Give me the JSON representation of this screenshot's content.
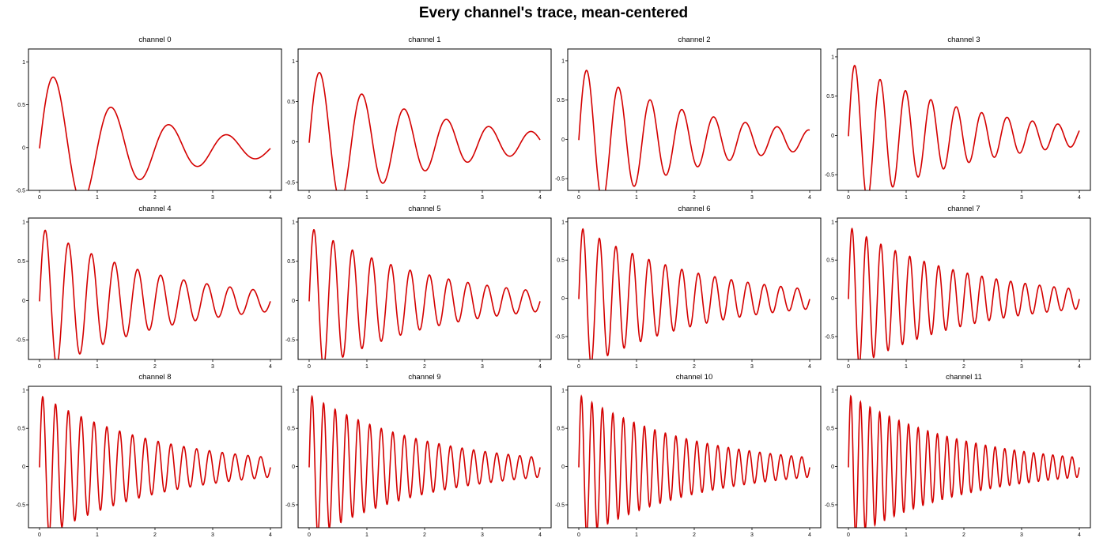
{
  "figure": {
    "title": "Every channel's trace, mean-centered",
    "line_color": "#d40000",
    "frame_color": "#000000"
  },
  "chart_data": [
    {
      "type": "line",
      "title": "channel 0",
      "xlim": [
        0,
        4
      ],
      "ylim": [
        -0.5,
        1.15
      ],
      "xticks": [
        0,
        1,
        2,
        3,
        4
      ],
      "yticks": [
        -0.5,
        0,
        0.5,
        1
      ],
      "ytick_labels": [
        "-0.5",
        "0",
        "0.5",
        "1"
      ],
      "grid": false,
      "signal": {
        "frequency_hz": 1.0,
        "decay_rate": 0.55
      },
      "series": [
        {
          "x": [
            0,
            0.25,
            0.75,
            1.25,
            1.75,
            2.25,
            2.75,
            3.25,
            3.75,
            4
          ],
          "y": [
            -0.04,
            0.82,
            -0.63,
            0.43,
            -0.39,
            0.22,
            -0.24,
            0.1,
            -0.15,
            -0.05
          ]
        }
      ]
    },
    {
      "type": "line",
      "title": "channel 1",
      "xlim": [
        0,
        4
      ],
      "ylim": [
        -0.6,
        1.15
      ],
      "xticks": [
        0,
        1,
        2,
        3,
        4
      ],
      "yticks": [
        -0.5,
        0,
        0.5,
        1
      ],
      "ytick_labels": [
        "-0.5",
        "0",
        "0.5",
        "1"
      ],
      "grid": false,
      "signal": {
        "frequency_hz": 1.364,
        "decay_rate": 0.5
      },
      "series": [
        {
          "x": [
            0,
            0.18,
            0.55,
            0.92,
            1.28,
            1.65,
            2.02,
            2.38,
            2.75,
            3.12,
            3.48,
            3.85,
            4
          ],
          "y": [
            -0.03,
            0.87,
            -0.63,
            0.55,
            -0.5,
            0.34,
            -0.34,
            0.22,
            -0.24,
            0.13,
            -0.16,
            0.07,
            -0.08
          ]
        }
      ]
    },
    {
      "type": "line",
      "title": "channel 2",
      "xlim": [
        0,
        4
      ],
      "ylim": [
        -0.65,
        1.15
      ],
      "xticks": [
        0,
        1,
        2,
        3,
        4
      ],
      "yticks": [
        -0.5,
        0,
        0.5,
        1
      ],
      "ytick_labels": [
        "-0.5",
        "0",
        "0.5",
        "1"
      ],
      "grid": false,
      "signal": {
        "frequency_hz": 1.818,
        "decay_rate": 0.5
      },
      "series": [
        {
          "x": [
            0,
            0.14,
            0.41,
            0.69,
            0.96,
            1.24,
            1.51,
            1.79,
            2.06,
            2.34,
            2.61,
            2.89,
            3.16,
            3.44,
            3.71,
            4
          ],
          "y": [
            -0.02,
            0.9,
            -0.68,
            0.63,
            -0.59,
            0.45,
            -0.42,
            0.31,
            -0.32,
            0.21,
            -0.23,
            0.15,
            -0.16,
            0.1,
            -0.13,
            0.06
          ]
        }
      ]
    },
    {
      "type": "line",
      "title": "channel 3",
      "xlim": [
        0,
        4
      ],
      "ylim": [
        -0.7,
        1.1
      ],
      "xticks": [
        0,
        1,
        2,
        3,
        4
      ],
      "yticks": [
        -0.5,
        0,
        0.5,
        1
      ],
      "ytick_labels": [
        "-0.5",
        "0",
        "0.5",
        "1"
      ],
      "grid": false,
      "signal": {
        "frequency_hz": 2.273,
        "decay_rate": 0.5
      },
      "series": [
        {
          "x": [
            0,
            0.11,
            0.33,
            0.55,
            0.77,
            0.99,
            1.21,
            1.43,
            1.65,
            1.87,
            2.09,
            2.31,
            2.53,
            2.75,
            2.97,
            3.19,
            3.41,
            3.63,
            3.85,
            4
          ],
          "y": [
            -0.01,
            0.9,
            -0.76,
            0.69,
            -0.62,
            0.53,
            -0.47,
            0.39,
            -0.38,
            0.29,
            -0.28,
            0.22,
            -0.23,
            0.16,
            -0.18,
            0.12,
            -0.14,
            0.1,
            -0.11,
            -0.11
          ]
        }
      ]
    },
    {
      "type": "line",
      "title": "channel 4",
      "xlim": [
        0,
        4
      ],
      "ylim": [
        -0.75,
        1.05
      ],
      "xticks": [
        0,
        1,
        2,
        3,
        4
      ],
      "yticks": [
        -0.5,
        0,
        0.5,
        1
      ],
      "ytick_labels": [
        "-0.5",
        "0",
        "0.5",
        "1"
      ],
      "grid": false,
      "signal": {
        "frequency_hz": 2.5,
        "decay_rate": 0.5
      },
      "series": [
        {
          "x": [
            0,
            0.1,
            0.5,
            0.9,
            1.3,
            1.7,
            2.1,
            2.5,
            2.9,
            3.3,
            3.7,
            4
          ],
          "y": [
            -0.02,
            0.92,
            0.73,
            0.57,
            0.45,
            0.35,
            0.28,
            0.21,
            0.17,
            0.13,
            0.1,
            0.04
          ]
        }
      ]
    },
    {
      "type": "line",
      "title": "channel 5",
      "xlim": [
        0,
        4
      ],
      "ylim": [
        -0.75,
        1.05
      ],
      "xticks": [
        0,
        1,
        2,
        3,
        4
      ],
      "yticks": [
        -0.5,
        0,
        0.5,
        1
      ],
      "ytick_labels": [
        "-0.5",
        "0",
        "0.5",
        "1"
      ],
      "grid": false,
      "signal": {
        "frequency_hz": 3.0,
        "decay_rate": 0.5
      },
      "series": [
        {
          "x": [
            0,
            0.08,
            0.42,
            0.75,
            1.08,
            1.42,
            1.75,
            2.08,
            2.42,
            2.75,
            3.08,
            3.42,
            3.75,
            4
          ],
          "y": [
            -0.01,
            0.93,
            0.76,
            0.62,
            0.5,
            0.41,
            0.33,
            0.27,
            0.22,
            0.18,
            0.15,
            0.12,
            0.1,
            -0.02
          ]
        }
      ]
    },
    {
      "type": "line",
      "title": "channel 6",
      "xlim": [
        0,
        4
      ],
      "ylim": [
        -0.8,
        1.05
      ],
      "xticks": [
        0,
        1,
        2,
        3,
        4
      ],
      "yticks": [
        -0.5,
        0,
        0.5,
        1
      ],
      "ytick_labels": [
        "-0.5",
        "0",
        "0.5",
        "1"
      ],
      "grid": false,
      "signal": {
        "frequency_hz": 3.5,
        "decay_rate": 0.5
      },
      "series": [
        {
          "x": [
            0,
            0.07,
            0.36,
            0.64,
            0.93,
            1.21,
            1.5,
            1.79,
            2.07,
            2.36,
            2.64,
            2.93,
            3.21,
            3.5,
            3.79,
            4
          ],
          "y": [
            -0.01,
            0.93,
            0.78,
            0.65,
            0.55,
            0.45,
            0.38,
            0.32,
            0.27,
            0.22,
            0.19,
            0.16,
            0.13,
            0.11,
            0.09,
            -0.06
          ]
        }
      ]
    },
    {
      "type": "line",
      "title": "channel 7",
      "xlim": [
        0,
        4
      ],
      "ylim": [
        -0.8,
        1.05
      ],
      "xticks": [
        0,
        1,
        2,
        3,
        4
      ],
      "yticks": [
        -0.5,
        0,
        0.5,
        1
      ],
      "ytick_labels": [
        "-0.5",
        "0",
        "0.5",
        "1"
      ],
      "grid": false,
      "signal": {
        "frequency_hz": 4.0,
        "decay_rate": 0.5
      },
      "series": [
        {
          "x": [
            0,
            0.06,
            0.31,
            0.56,
            0.81,
            1.06,
            1.31,
            1.56,
            1.81,
            2.06,
            2.31,
            2.56,
            2.81,
            3.06,
            3.31,
            3.56,
            3.81,
            4
          ],
          "y": [
            -0.01,
            0.94,
            0.8,
            0.68,
            0.58,
            0.49,
            0.42,
            0.36,
            0.3,
            0.26,
            0.22,
            0.19,
            0.16,
            0.14,
            0.12,
            0.1,
            0.08,
            0.06
          ]
        }
      ]
    },
    {
      "type": "line",
      "title": "channel 8",
      "xlim": [
        0,
        4
      ],
      "ylim": [
        -0.8,
        1.05
      ],
      "xticks": [
        0,
        1,
        2,
        3,
        4
      ],
      "yticks": [
        -0.5,
        0,
        0.5,
        1
      ],
      "ytick_labels": [
        "-0.5",
        "0",
        "0.5",
        "1"
      ],
      "grid": false,
      "signal": {
        "frequency_hz": 4.5,
        "decay_rate": 0.5
      },
      "series": [
        {
          "x": [
            0,
            0.06,
            0.28,
            0.5,
            0.72,
            0.94,
            1.17,
            1.39,
            1.61,
            1.83,
            2.06,
            2.28,
            2.5,
            2.72,
            2.94,
            3.17,
            3.39,
            3.61,
            3.83,
            4
          ],
          "y": [
            -0.01,
            0.94,
            0.82,
            0.71,
            0.62,
            0.53,
            0.46,
            0.4,
            0.35,
            0.3,
            0.26,
            0.23,
            0.2,
            0.17,
            0.15,
            0.13,
            0.11,
            0.1,
            0.08,
            -0.1
          ]
        }
      ]
    },
    {
      "type": "line",
      "title": "channel 9",
      "xlim": [
        0,
        4
      ],
      "ylim": [
        -0.8,
        1.05
      ],
      "xticks": [
        0,
        1,
        2,
        3,
        4
      ],
      "yticks": [
        -0.5,
        0,
        0.5,
        1
      ],
      "ytick_labels": [
        "-0.5",
        "0",
        "0.5",
        "1"
      ],
      "grid": false,
      "signal": {
        "frequency_hz": 5.0,
        "decay_rate": 0.5
      },
      "series": [
        {
          "x": [
            0,
            0.05,
            0.25,
            0.45,
            0.65,
            0.85,
            1.05,
            1.25,
            1.45,
            1.65,
            1.85,
            2.05,
            2.25,
            2.45,
            2.65,
            2.85,
            3.05,
            3.25,
            3.45,
            3.65,
            3.85,
            4
          ],
          "y": [
            -0.01,
            0.95,
            0.84,
            0.74,
            0.65,
            0.57,
            0.5,
            0.44,
            0.39,
            0.34,
            0.3,
            0.26,
            0.23,
            0.2,
            0.18,
            0.16,
            0.14,
            0.12,
            0.11,
            0.1,
            0.08,
            0.04
          ]
        }
      ]
    },
    {
      "type": "line",
      "title": "channel 10",
      "xlim": [
        0,
        4
      ],
      "ylim": [
        -0.8,
        1.05
      ],
      "xticks": [
        0,
        1,
        2,
        3,
        4
      ],
      "yticks": [
        -0.5,
        0,
        0.5,
        1
      ],
      "ytick_labels": [
        "-0.5",
        "0",
        "0.5",
        "1"
      ],
      "grid": false,
      "signal": {
        "frequency_hz": 5.5,
        "decay_rate": 0.5
      },
      "series": [
        {
          "x": [
            0,
            0.05,
            0.23,
            0.41,
            0.59,
            0.77,
            0.95,
            1.14,
            1.32,
            1.5,
            1.68,
            1.86,
            2.05,
            2.23,
            2.41,
            2.59,
            2.77,
            2.95,
            3.14,
            3.32,
            3.5,
            3.68,
            3.86,
            4
          ],
          "y": [
            -0.01,
            0.95,
            0.85,
            0.75,
            0.67,
            0.6,
            0.53,
            0.47,
            0.42,
            0.37,
            0.33,
            0.3,
            0.26,
            0.23,
            0.21,
            0.19,
            0.17,
            0.15,
            0.13,
            0.12,
            0.1,
            0.09,
            0.08,
            -0.06
          ]
        }
      ]
    },
    {
      "type": "line",
      "title": "channel 11",
      "xlim": [
        0,
        4
      ],
      "ylim": [
        -0.8,
        1.05
      ],
      "xticks": [
        0,
        1,
        2,
        3,
        4
      ],
      "yticks": [
        -0.5,
        0,
        0.5,
        1
      ],
      "ytick_labels": [
        "-0.5",
        "0",
        "0.5",
        "1"
      ],
      "grid": false,
      "signal": {
        "frequency_hz": 6.0,
        "decay_rate": 0.5
      },
      "series": [
        {
          "x": [
            0,
            0.04,
            0.21,
            0.38,
            0.54,
            0.71,
            0.88,
            1.04,
            1.21,
            1.38,
            1.54,
            1.71,
            1.88,
            2.04,
            2.21,
            2.38,
            2.54,
            2.71,
            2.88,
            3.04,
            3.21,
            3.38,
            3.54,
            3.71,
            3.88,
            4
          ],
          "y": [
            -0.01,
            0.95,
            0.86,
            0.77,
            0.69,
            0.62,
            0.56,
            0.5,
            0.45,
            0.4,
            0.36,
            0.32,
            0.29,
            0.26,
            0.23,
            0.21,
            0.19,
            0.17,
            0.15,
            0.14,
            0.12,
            0.11,
            0.1,
            0.09,
            0.08,
            -0.06
          ]
        }
      ]
    }
  ]
}
